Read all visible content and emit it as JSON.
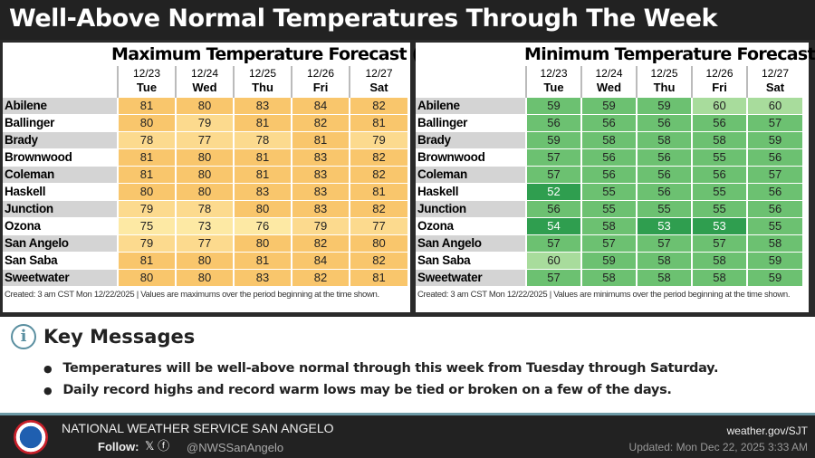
{
  "title": "Well-Above Normal Temperatures Through The Week",
  "days": [
    {
      "date": "12/23",
      "day": "Tue"
    },
    {
      "date": "12/24",
      "day": "Wed"
    },
    {
      "date": "12/25",
      "day": "Thu"
    },
    {
      "date": "12/26",
      "day": "Fri"
    },
    {
      "date": "12/27",
      "day": "Sat"
    }
  ],
  "max": {
    "title": "Maximum Temperature Forecast (°F)",
    "footnote": "Created: 3 am CST Mon 12/22/2025  |  Values are maximums over the period beginning at the time shown.",
    "rows": [
      {
        "city": "Abilene",
        "v": [
          81,
          80,
          83,
          84,
          82
        ]
      },
      {
        "city": "Ballinger",
        "v": [
          80,
          79,
          81,
          82,
          81
        ]
      },
      {
        "city": "Brady",
        "v": [
          78,
          77,
          78,
          81,
          79
        ]
      },
      {
        "city": "Brownwood",
        "v": [
          81,
          80,
          81,
          83,
          82
        ]
      },
      {
        "city": "Coleman",
        "v": [
          81,
          80,
          81,
          83,
          82
        ]
      },
      {
        "city": "Haskell",
        "v": [
          80,
          80,
          83,
          83,
          81
        ]
      },
      {
        "city": "Junction",
        "v": [
          79,
          78,
          80,
          83,
          82
        ]
      },
      {
        "city": "Ozona",
        "v": [
          75,
          73,
          76,
          79,
          77
        ]
      },
      {
        "city": "San Angelo",
        "v": [
          79,
          77,
          80,
          82,
          80
        ]
      },
      {
        "city": "San Saba",
        "v": [
          81,
          80,
          81,
          84,
          82
        ]
      },
      {
        "city": "Sweetwater",
        "v": [
          80,
          80,
          83,
          82,
          81
        ]
      }
    ]
  },
  "min": {
    "title": "Minimum Temperature Forecast (°F)",
    "footnote": "Created: 3 am CST Mon 12/22/2025  |  Values are minimums over the period beginning at the time shown.",
    "rows": [
      {
        "city": "Abilene",
        "v": [
          59,
          59,
          59,
          60,
          60
        ]
      },
      {
        "city": "Ballinger",
        "v": [
          56,
          56,
          56,
          56,
          57
        ]
      },
      {
        "city": "Brady",
        "v": [
          59,
          58,
          58,
          58,
          59
        ]
      },
      {
        "city": "Brownwood",
        "v": [
          57,
          56,
          56,
          55,
          56
        ]
      },
      {
        "city": "Coleman",
        "v": [
          57,
          56,
          56,
          56,
          57
        ]
      },
      {
        "city": "Haskell",
        "v": [
          52,
          55,
          56,
          55,
          56
        ]
      },
      {
        "city": "Junction",
        "v": [
          56,
          55,
          55,
          55,
          56
        ]
      },
      {
        "city": "Ozona",
        "v": [
          54,
          58,
          53,
          53,
          55
        ]
      },
      {
        "city": "San Angelo",
        "v": [
          57,
          57,
          57,
          57,
          58
        ]
      },
      {
        "city": "San Saba",
        "v": [
          60,
          59,
          58,
          58,
          59
        ]
      },
      {
        "city": "Sweetwater",
        "v": [
          57,
          58,
          58,
          58,
          59
        ]
      }
    ]
  },
  "key": {
    "title": "Key Messages",
    "bullets": [
      "Temperatures will be well-above normal through this week from Tuesday through Saturday.",
      "Daily record highs and record warm lows may be tied or broken on a few of the days."
    ]
  },
  "footer": {
    "office": "NATIONAL WEATHER SERVICE SAN ANGELO",
    "follow": "Follow:",
    "social_icons": "𝕏 ⓕ",
    "handle": "@NWSSanAngelo",
    "site": "weather.gov/SJT",
    "updated": "Updated: Mon Dec 22, 2025 3:33 AM",
    "logo_text": "NATIONAL WEATHER SERVICE"
  }
}
